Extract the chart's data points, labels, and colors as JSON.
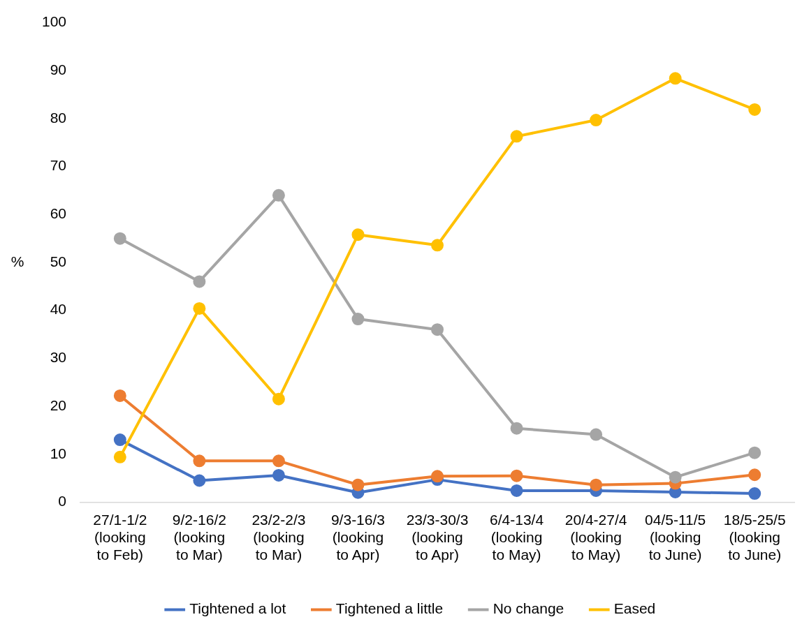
{
  "chart_data": {
    "type": "line",
    "ylabel": "%",
    "categories": [
      "27/1-1/2 (looking to Feb)",
      "9/2-16/2 (looking to Mar)",
      "23/2-2/3 (looking to Mar)",
      "9/3-16/3 (looking to Apr)",
      "23/3-30/3 (looking to Apr)",
      "6/4-13/4 (looking to May)",
      "20/4-27/4 (looking to May)",
      "04/5-11/5 (looking to June)",
      "18/5-25/5 (looking to June)"
    ],
    "series": [
      {
        "name": "Tightened a lot",
        "color": "#4472c4",
        "values": [
          13,
          4.5,
          5.6,
          2,
          4.7,
          2.4,
          2.4,
          2.1,
          1.8
        ]
      },
      {
        "name": "Tightened a little",
        "color": "#ed7d31",
        "values": [
          22.2,
          8.6,
          8.6,
          3.6,
          5.4,
          5.5,
          3.6,
          3.9,
          5.7
        ]
      },
      {
        "name": "No change",
        "color": "#a5a5a5",
        "values": [
          55,
          46,
          64,
          38.2,
          36,
          15.4,
          14.1,
          5.2,
          10.3
        ]
      },
      {
        "name": "Eased",
        "color": "#ffc000",
        "values": [
          9.4,
          40.4,
          21.5,
          55.8,
          53.6,
          76.3,
          79.7,
          88.4,
          81.9
        ]
      }
    ],
    "ylim": [
      0,
      100
    ],
    "yticks": [
      0,
      10,
      20,
      30,
      40,
      50,
      60,
      70,
      80,
      90,
      100
    ],
    "grid": false,
    "legend": "bottom",
    "marker": "circle",
    "line_style": "solid"
  }
}
